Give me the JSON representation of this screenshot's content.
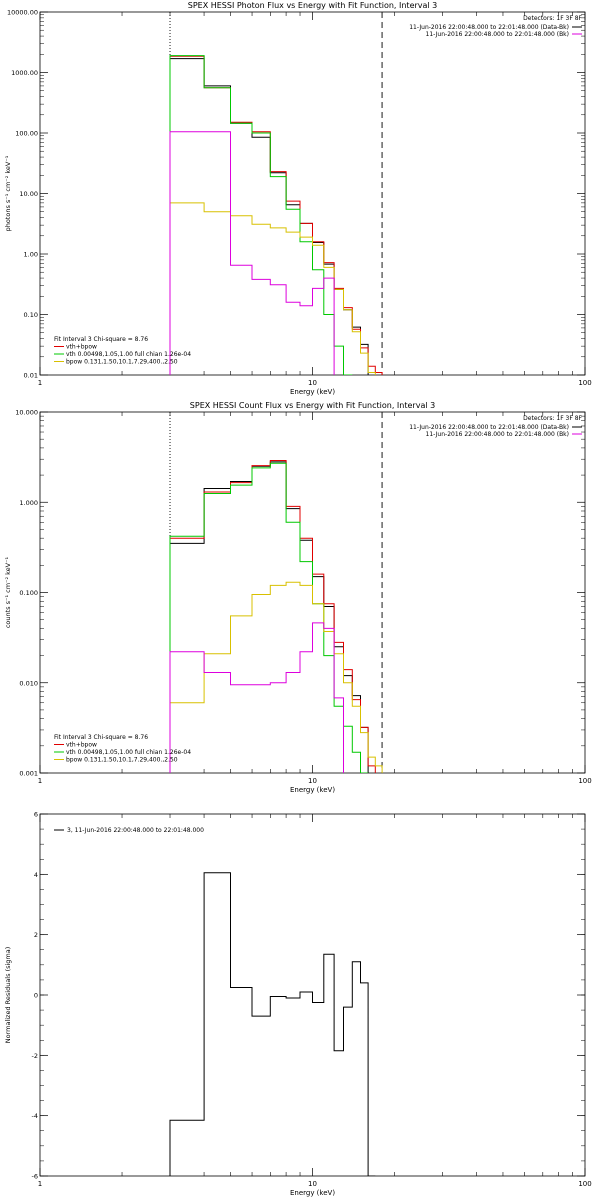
{
  "colors": {
    "data": "#000000",
    "model_total": "#e00000",
    "vth": "#00c800",
    "bpow": "#d8c000",
    "background": "#dd00dd"
  },
  "chart_data": [
    {
      "type": "line",
      "step": true,
      "title": "SPEX HESSI Photon Flux vs Energy with Fit Function, Interval 3",
      "xlabel": "Energy (keV)",
      "ylabel": "photons s⁻¹ cm⁻² keV⁻¹",
      "xscale": "log",
      "yscale": "log",
      "xlim": [
        1,
        100
      ],
      "ylim": [
        0.01,
        10000
      ],
      "xticks": [
        1,
        10,
        100
      ],
      "xtick_labels": [
        "1",
        "10",
        "100"
      ],
      "yticks": [
        0.01,
        0.1,
        1,
        10,
        100,
        1000,
        10000
      ],
      "ytick_labels": [
        "0.01",
        "0.10",
        "1.00",
        "10.00",
        "100.00",
        "1000.00",
        "10000.00"
      ],
      "vlines": [
        3.0,
        18.0
      ],
      "edges": [
        3.0,
        4.0,
        5.0,
        6.0,
        7.0,
        8.0,
        9.0,
        10.0,
        11.0,
        12.0,
        13.0,
        14.0,
        15.0,
        16.0,
        17.0,
        18.0,
        19.0,
        20.0
      ],
      "series": [
        {
          "key": "data",
          "values": [
            1700,
            600,
            145,
            85,
            22,
            6.5,
            3.2,
            1.55,
            0.68,
            0.26,
            0.12,
            0.062,
            0.032,
            null,
            null,
            null,
            null
          ]
        },
        {
          "key": "model_total",
          "values": [
            1850,
            560,
            150,
            105,
            23,
            7.5,
            3.2,
            1.6,
            0.72,
            0.27,
            0.13,
            0.057,
            0.028,
            0.014,
            0.011,
            null,
            null
          ]
        },
        {
          "key": "vth",
          "values": [
            1900,
            560,
            145,
            100,
            19,
            5.5,
            1.6,
            0.55,
            0.1,
            0.03,
            0.01,
            null,
            null,
            null,
            null,
            null,
            null
          ]
        },
        {
          "key": "bpow",
          "values": [
            7.0,
            5.0,
            4.3,
            3.1,
            2.7,
            2.3,
            1.9,
            1.4,
            0.6,
            0.26,
            0.12,
            0.052,
            0.023,
            0.011,
            null,
            null,
            null
          ]
        },
        {
          "key": "background",
          "values": [
            105,
            105,
            0.65,
            0.38,
            0.31,
            0.16,
            0.14,
            0.27,
            0.4,
            null,
            null,
            null,
            null,
            null,
            null,
            null,
            null
          ]
        }
      ],
      "detectors": "Detectors: 1F 3F 8F",
      "legend_right": [
        {
          "text": "11-Jun-2016 22:00:48.000 to 22:01:48.000 (Data-Bk)",
          "color_key": "data"
        },
        {
          "text": "11-Jun-2016 22:00:48.000 to 22:01:48.000 (Bk)",
          "color_key": "background"
        }
      ],
      "legend_left": [
        {
          "text": "Fit Interval 3   Chi-square = 8.76",
          "color_key": ""
        },
        {
          "text": "vth+bpow",
          "color_key": "model_total"
        },
        {
          "text": "vth 0.00498,1.05,1.00  full chian 1.26e-04",
          "color_key": "vth"
        },
        {
          "text": "bpow 0.131,1.50,10.1,7.29,400.,2.50",
          "color_key": "bpow"
        }
      ]
    },
    {
      "type": "line",
      "step": true,
      "title": "SPEX HESSI Count Flux vs Energy with Fit Function, Interval 3",
      "xlabel": "Energy (keV)",
      "ylabel": "counts s⁻¹ cm⁻² keV⁻¹",
      "xscale": "log",
      "yscale": "log",
      "xlim": [
        1,
        100
      ],
      "ylim": [
        0.001,
        10
      ],
      "xticks": [
        1,
        10,
        100
      ],
      "xtick_labels": [
        "1",
        "10",
        "100"
      ],
      "yticks": [
        0.001,
        0.01,
        0.1,
        1,
        10
      ],
      "ytick_labels": [
        "0.001",
        "0.010",
        "0.100",
        "1.000",
        "10.000"
      ],
      "vlines": [
        3.0,
        18.0
      ],
      "edges": [
        3.0,
        4.0,
        5.0,
        6.0,
        7.0,
        8.0,
        9.0,
        10.0,
        11.0,
        12.0,
        13.0,
        14.0,
        15.0,
        16.0,
        17.0,
        18.0,
        19.0,
        20.0
      ],
      "series": [
        {
          "key": "data",
          "values": [
            0.35,
            1.42,
            1.7,
            2.5,
            2.8,
            0.85,
            0.38,
            0.15,
            0.07,
            0.025,
            0.012,
            0.0072,
            0.0032,
            null,
            null,
            null,
            null
          ]
        },
        {
          "key": "model_total",
          "values": [
            0.4,
            1.3,
            1.65,
            2.55,
            2.9,
            0.9,
            0.4,
            0.16,
            0.075,
            0.028,
            0.014,
            0.0065,
            0.0032,
            0.0012,
            null,
            null,
            null
          ]
        },
        {
          "key": "vth",
          "values": [
            0.42,
            1.25,
            1.55,
            2.4,
            2.7,
            0.6,
            0.22,
            0.075,
            0.02,
            0.0055,
            0.0033,
            0.0017,
            0.001,
            null,
            null,
            null,
            null
          ]
        },
        {
          "key": "bpow",
          "values": [
            0.006,
            0.021,
            0.055,
            0.095,
            0.12,
            0.13,
            0.12,
            0.075,
            0.037,
            0.021,
            0.01,
            0.0055,
            0.0028,
            0.0015,
            0.0012,
            null,
            null
          ]
        },
        {
          "key": "background",
          "values": [
            0.022,
            0.013,
            0.0095,
            0.0095,
            0.01,
            0.013,
            0.022,
            0.046,
            0.04,
            0.0068,
            null,
            null,
            null,
            null,
            null,
            null,
            null
          ]
        }
      ],
      "detectors": "Detectors: 1F 3F 8F",
      "legend_right": [
        {
          "text": "11-Jun-2016 22:00:48.000 to 22:01:48.000 (Data-Bk)",
          "color_key": "data"
        },
        {
          "text": "11-Jun-2016 22:00:48.000 to 22:01:48.000 (Bk)",
          "color_key": "background"
        }
      ],
      "legend_left": [
        {
          "text": "Fit Interval 3   Chi-square = 8.76",
          "color_key": ""
        },
        {
          "text": "vth+bpow",
          "color_key": "model_total"
        },
        {
          "text": "vth 0.00498,1.05,1.00  full chian 1.26e-04",
          "color_key": "vth"
        },
        {
          "text": "bpow 0.131,1.50,10.1,7.29,400.,2.50",
          "color_key": "bpow"
        }
      ]
    },
    {
      "type": "line",
      "step": true,
      "title": "",
      "xlabel": "Energy (keV)",
      "ylabel": "Normalized Residuals (sigma)",
      "xscale": "log",
      "yscale": "linear",
      "xlim": [
        1,
        100
      ],
      "ylim": [
        -6,
        6
      ],
      "xticks": [
        1,
        10,
        100
      ],
      "xtick_labels": [
        "1",
        "10",
        "100"
      ],
      "yticks": [
        -6,
        -4,
        -2,
        0,
        2,
        4,
        6
      ],
      "ytick_labels": [
        "-6",
        "-4",
        "-2",
        "0",
        "2",
        "4",
        "6"
      ],
      "vlines": [],
      "edges": [
        3.0,
        4.0,
        5.0,
        6.0,
        7.0,
        8.0,
        9.0,
        10.0,
        11.0,
        12.0,
        13.0,
        14.0,
        15.0,
        16.0,
        17.0,
        18.0
      ],
      "series": [
        {
          "key": "data",
          "values": [
            -4.15,
            4.05,
            0.25,
            -0.7,
            -0.05,
            -0.1,
            0.1,
            -0.25,
            1.35,
            -1.85,
            -0.4,
            1.1,
            0.4,
            -6.0,
            null
          ]
        }
      ],
      "detectors": "",
      "legend_right": [],
      "legend_left": [
        {
          "text": "3, 11-Jun-2016 22:00:48.000 to 22:01:48.000",
          "color_key": "data"
        }
      ]
    }
  ]
}
